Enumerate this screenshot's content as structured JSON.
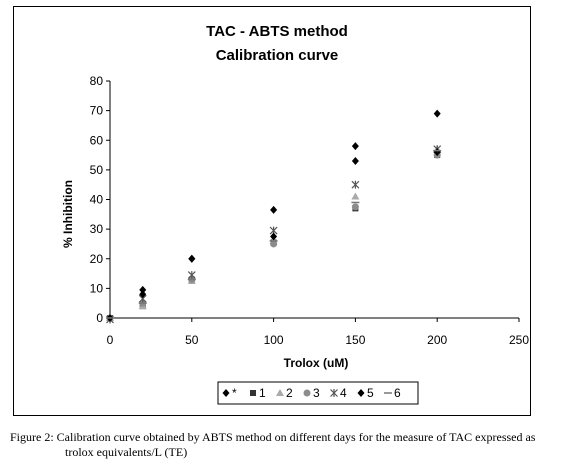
{
  "chart_data": {
    "type": "scatter",
    "title": "TAC - ABTS method",
    "subtitle": "Calibration curve",
    "xlabel": "Trolox (uM)",
    "ylabel": "% Inhibition",
    "xlim": [
      0,
      250
    ],
    "ylim": [
      0,
      80
    ],
    "xticks": [
      0,
      50,
      100,
      150,
      200,
      250
    ],
    "yticks": [
      0,
      10,
      20,
      30,
      40,
      50,
      60,
      70,
      80
    ],
    "grid": false,
    "legend_position": "bottom",
    "series": [
      {
        "name": "*",
        "marker": "diamond",
        "color": "#000000",
        "points": [
          [
            0,
            0
          ],
          [
            20,
            9.5
          ],
          [
            50,
            20
          ],
          [
            100,
            36.5
          ],
          [
            150,
            58
          ],
          [
            200,
            69
          ]
        ]
      },
      {
        "name": "1",
        "marker": "square",
        "color": "#333333",
        "points": [
          [
            0,
            0
          ],
          [
            20,
            4
          ],
          [
            50,
            13
          ],
          [
            100,
            25.5
          ],
          [
            150,
            37
          ],
          [
            200,
            55
          ]
        ]
      },
      {
        "name": "2",
        "marker": "triangle",
        "color": "#aaaaaa",
        "points": [
          [
            0,
            0
          ],
          [
            20,
            4
          ],
          [
            50,
            12.5
          ],
          [
            100,
            26
          ],
          [
            150,
            41
          ],
          [
            200,
            57
          ]
        ]
      },
      {
        "name": "3",
        "marker": "circle",
        "color": "#8c8c8c",
        "points": [
          [
            0,
            0
          ],
          [
            20,
            5
          ],
          [
            50,
            13
          ],
          [
            100,
            25
          ],
          [
            150,
            37.5
          ],
          [
            200,
            55
          ]
        ]
      },
      {
        "name": "4",
        "marker": "star",
        "color": "#555555",
        "points": [
          [
            0,
            -0.5
          ],
          [
            20,
            6.5
          ],
          [
            50,
            14.5
          ],
          [
            100,
            29.5
          ],
          [
            150,
            45
          ],
          [
            200,
            57
          ]
        ]
      },
      {
        "name": "5",
        "marker": "diamond",
        "color": "#000000",
        "points": [
          [
            0,
            0
          ],
          [
            20,
            8
          ],
          [
            50,
            20
          ],
          [
            100,
            27.5
          ],
          [
            150,
            53
          ],
          [
            200,
            56
          ]
        ]
      },
      {
        "name": "6",
        "marker": "dash",
        "color": "#777777",
        "points": [
          [
            0,
            0
          ],
          [
            20,
            5
          ],
          [
            50,
            13
          ],
          [
            100,
            26
          ],
          [
            150,
            39
          ],
          [
            200,
            56.5
          ]
        ]
      }
    ]
  },
  "caption": {
    "line1": "Figure 2: Calibration curve obtained by ABTS method on different days for the measure of TAC expressed as",
    "line2": "trolox equivalents/L (TE)"
  }
}
